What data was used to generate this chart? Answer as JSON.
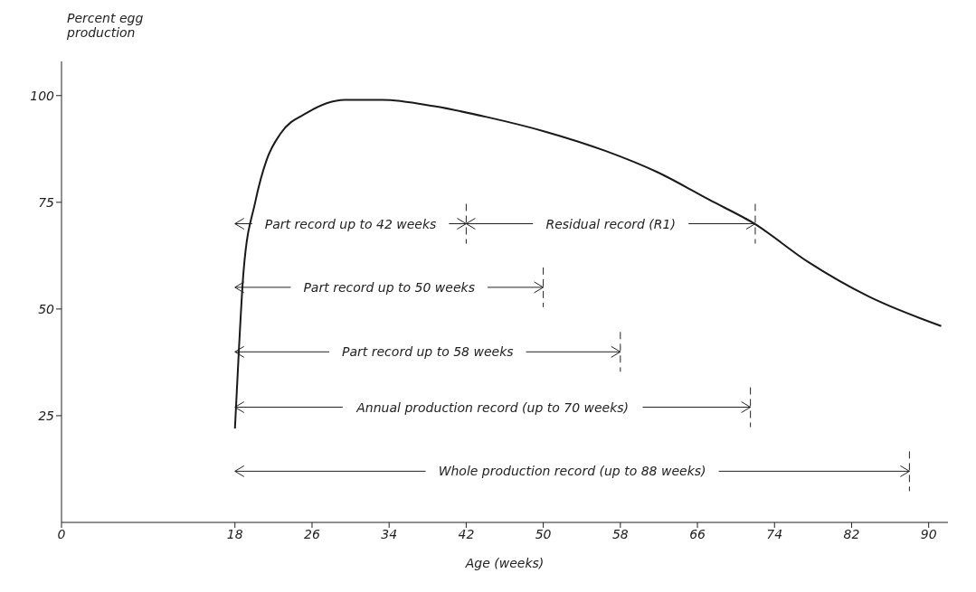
{
  "chart_data": {
    "type": "line",
    "xlabel": "Age (weeks)",
    "ylabel": "Percent egg production",
    "x": [
      18,
      18.4,
      18.9,
      20.1,
      21.3,
      22.7,
      25.5,
      29.4,
      33.3,
      38.7,
      44.1,
      50.3,
      56.5,
      61.9,
      67.3,
      71.9,
      77.5,
      83.7,
      91.3
    ],
    "series": [
      {
        "color": "#1a1a1a",
        "values": [
          22,
          40,
          59,
          75,
          85,
          91,
          96,
          99,
          99,
          97.5,
          95,
          91.5,
          87,
          82,
          75.5,
          70,
          61,
          53,
          46
        ]
      }
    ],
    "xlim": [
      0,
      92
    ],
    "xticks": [
      0,
      18,
      26,
      34,
      42,
      50,
      58,
      66,
      74,
      82,
      90
    ],
    "ylim": [
      0,
      108
    ],
    "yticks": [
      25,
      50,
      75,
      100
    ],
    "marker": "none",
    "line_style": "solid",
    "ref_lines": [
      {
        "axis": "x",
        "value": 42,
        "label": "Part record up to 42 weeks",
        "line_style": "dashed"
      },
      {
        "axis": "x",
        "value": 72,
        "label": "Residual record (R1)",
        "line_style": "dashed"
      },
      {
        "axis": "x",
        "value": 50,
        "label": "Part record up to 50 weeks",
        "line_style": "dashed"
      },
      {
        "axis": "x",
        "value": 58,
        "label": "Part record up to 58 weeks",
        "line_style": "dashed"
      },
      {
        "axis": "x",
        "value": 71.5,
        "label": "Annual production record (up to 70 weeks)",
        "line_style": "dashed"
      },
      {
        "axis": "x",
        "value": 88,
        "label": "Whole production record (up to 88 weeks)",
        "line_style": "dashed"
      }
    ]
  }
}
